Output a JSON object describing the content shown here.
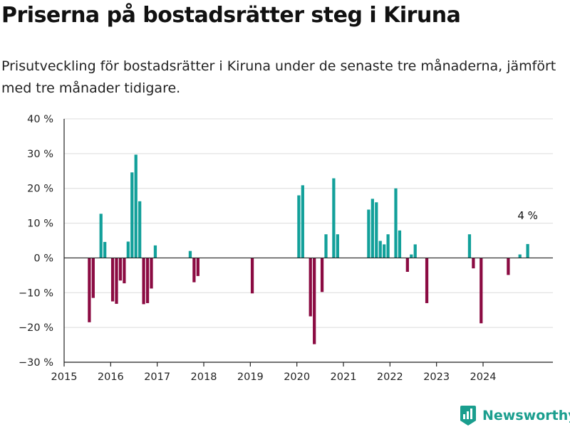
{
  "header": {
    "title": "Priserna på bostadsrätter steg i Kiruna",
    "subtitle": "Prisutveckling för bostadsrätter i Kiruna under de senaste tre månaderna, jämfört med tre månader tidigare."
  },
  "brand": {
    "name": "Newsworthy",
    "icon": "newsworthy-logo-icon"
  },
  "colors": {
    "positive": "#12a09a",
    "negative": "#8b0b42",
    "grid": "#dcdcdc",
    "axis": "#222222"
  },
  "chart_data": {
    "type": "bar",
    "title": "Priserna på bostadsrätter steg i Kiruna",
    "xlabel": "",
    "ylabel": "",
    "ylim": [
      -30,
      40
    ],
    "yticks": [
      -30,
      -20,
      -10,
      0,
      10,
      20,
      30,
      40
    ],
    "ytick_labels": [
      "−30 %",
      "−20 %",
      "−10 %",
      "0 %",
      "10 %",
      "20 %",
      "30 %",
      "40 %"
    ],
    "xlim": [
      "2015-01",
      "2025-07"
    ],
    "xtick_labels": [
      "2015",
      "2016",
      "2017",
      "2018",
      "2019",
      "2020",
      "2021",
      "2022",
      "2023",
      "2024"
    ],
    "grid": true,
    "annotation": {
      "text": "4 %",
      "x": "2024-12",
      "value": 4
    },
    "points": [
      {
        "x": "2015-07",
        "value": -18.5
      },
      {
        "x": "2015-08",
        "value": -11.5
      },
      {
        "x": "2015-10",
        "value": 12.7
      },
      {
        "x": "2015-11",
        "value": 4.6
      },
      {
        "x": "2016-01",
        "value": -12.5
      },
      {
        "x": "2016-02",
        "value": -13.2
      },
      {
        "x": "2016-03",
        "value": -6.5
      },
      {
        "x": "2016-04",
        "value": -7.3
      },
      {
        "x": "2016-05",
        "value": 4.7
      },
      {
        "x": "2016-06",
        "value": 24.6
      },
      {
        "x": "2016-07",
        "value": 29.7
      },
      {
        "x": "2016-08",
        "value": 16.3
      },
      {
        "x": "2016-09",
        "value": -13.3
      },
      {
        "x": "2016-10",
        "value": -13.0
      },
      {
        "x": "2016-11",
        "value": -8.8
      },
      {
        "x": "2016-12",
        "value": 3.6
      },
      {
        "x": "2017-09",
        "value": 2.0
      },
      {
        "x": "2017-10",
        "value": -7.0
      },
      {
        "x": "2017-11",
        "value": -5.2
      },
      {
        "x": "2019-01",
        "value": -10.2
      },
      {
        "x": "2020-01",
        "value": 18.0
      },
      {
        "x": "2020-02",
        "value": 20.9
      },
      {
        "x": "2020-04",
        "value": -16.8
      },
      {
        "x": "2020-05",
        "value": -24.8
      },
      {
        "x": "2020-07",
        "value": -9.8
      },
      {
        "x": "2020-08",
        "value": 6.8
      },
      {
        "x": "2020-10",
        "value": 22.9
      },
      {
        "x": "2020-11",
        "value": 6.8
      },
      {
        "x": "2021-07",
        "value": 13.9
      },
      {
        "x": "2021-08",
        "value": 17.0
      },
      {
        "x": "2021-09",
        "value": 16.0
      },
      {
        "x": "2021-10",
        "value": 4.9
      },
      {
        "x": "2021-11",
        "value": 3.9
      },
      {
        "x": "2021-12",
        "value": 6.8
      },
      {
        "x": "2022-02",
        "value": 20.0
      },
      {
        "x": "2022-03",
        "value": 7.9
      },
      {
        "x": "2022-05",
        "value": -4.0
      },
      {
        "x": "2022-06",
        "value": 1.0
      },
      {
        "x": "2022-07",
        "value": 3.9
      },
      {
        "x": "2022-10",
        "value": -13.0
      },
      {
        "x": "2023-09",
        "value": 6.8
      },
      {
        "x": "2023-10",
        "value": -3.0
      },
      {
        "x": "2023-12",
        "value": -18.8
      },
      {
        "x": "2024-07",
        "value": -4.9
      },
      {
        "x": "2024-10",
        "value": 1.0
      },
      {
        "x": "2024-12",
        "value": 4.0
      }
    ]
  }
}
